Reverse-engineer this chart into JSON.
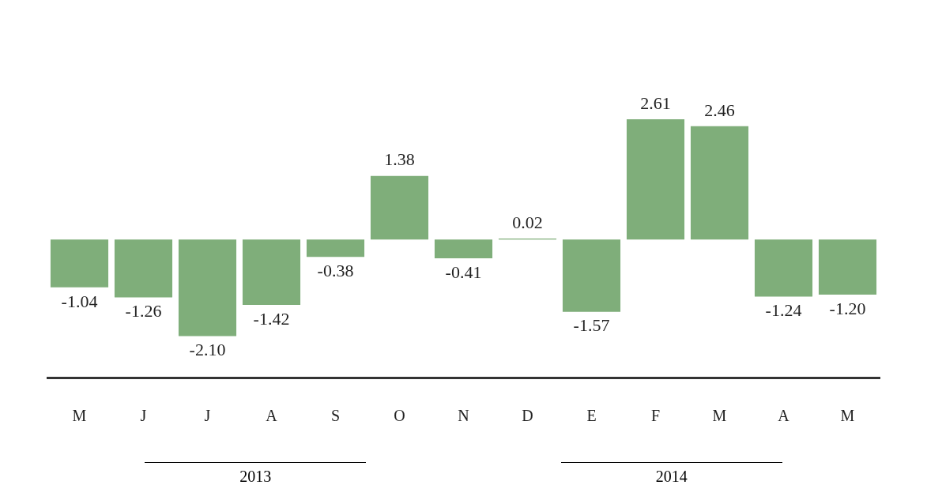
{
  "chart_data": {
    "type": "bar",
    "categories": [
      "M",
      "J",
      "J",
      "A",
      "S",
      "O",
      "N",
      "D",
      "E",
      "F",
      "M",
      "A",
      "M"
    ],
    "values": [
      -1.04,
      -1.26,
      -2.1,
      -1.42,
      -0.38,
      1.38,
      -0.41,
      0.02,
      -1.57,
      2.61,
      2.46,
      -1.24,
      -1.2
    ],
    "value_labels": [
      "-1.04",
      "-1.26",
      "-2.10",
      "-1.42",
      "-0.38",
      "1.38",
      "-0.41",
      "0.02",
      "-1.57",
      "2.61",
      "2.46",
      "-1.24",
      "-1.20"
    ],
    "color": "#7fae7a",
    "tick_labels": "x",
    "annotations": [
      "2013",
      "2014"
    ]
  }
}
